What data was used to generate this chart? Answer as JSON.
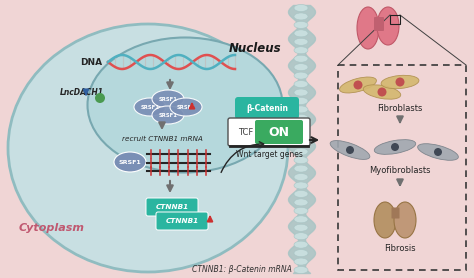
{
  "bg_pink": "#f0d5d5",
  "bg_cell": "#c8dfe2",
  "bg_nucleus": "#b5d8dc",
  "bg_cytoplasm": "#e8cdd0",
  "cell_edge": "#90bcc0",
  "nucleus_edge": "#78a8b0",
  "membrane_base": "#a8c5c5",
  "membrane_light": "#c8dede",
  "title_nucleus": "Nucleus",
  "title_cytoplasm": "Cytoplasm",
  "label_dna": "DNA",
  "label_lncdach1": "LncDACH1",
  "label_srsf1": "SRSF1",
  "label_recruit": "recruit CTNNB1 mRNA",
  "label_beta_catenin": "β-Catenin",
  "label_tcf": "TCF",
  "label_on": "ON",
  "label_wnt": "Wnt target genes",
  "label_ctnnb1_1": "CTNNB1",
  "label_ctnnb1_2": "CTNNB1",
  "label_bottom": "CTNNB1: β-Catenin mRNA",
  "label_fibroblasts": "Fibroblasts",
  "label_myofibroblasts": "Myofibroblasts",
  "label_fibrosis": "Fibrosis",
  "teal": "#2ab5a0",
  "teal_dark": "#1e9080",
  "blue_arrow": "#3060a0",
  "red_arrow": "#cc3030",
  "gray_arrow": "#707070",
  "srsf1_fill": "#7a8fb5",
  "green_on": "#3aaa60",
  "dna_red": "#e05050",
  "dna_teal": "#50b0c0",
  "dna_rung": "#c0c0c0",
  "black_line": "#252525",
  "dark_text": "#252525",
  "pink_lung": "#e07888",
  "pink_lung_dark": "#c05868",
  "tan_lung": "#b8956a",
  "tan_lung_dark": "#987545",
  "fibroblast_fill": "#d4b870",
  "fibroblast_nucleus": "#c05050",
  "myofib_fill": "#a0a8b0",
  "myofib_nucleus": "#404855",
  "dash_box": "#383838"
}
